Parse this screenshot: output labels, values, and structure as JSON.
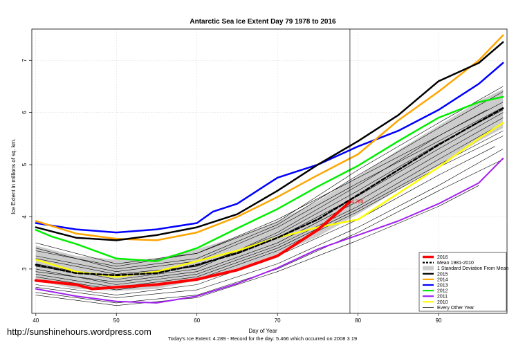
{
  "watermark": "http://sunshinehours.wordpress.com",
  "footer": "Today's Ice Extent: 4.289  - Record for the day: 5.466 which occurred on 2008 3 19",
  "chart_data": {
    "type": "line",
    "title": "Antarctic Sea Ice Extent Day 79 1978 to 2016",
    "xlabel": "Day of Year",
    "ylabel": "Ice Extent in millions of sq. km.",
    "xlim": [
      39.5,
      98.5
    ],
    "ylim": [
      2.15,
      7.6
    ],
    "xticks": [
      40,
      50,
      60,
      70,
      80,
      90
    ],
    "yticks": [
      3,
      4,
      5,
      6,
      7
    ],
    "grid": true,
    "vline_x": 79,
    "annotation": {
      "text": "4.289",
      "x": 79,
      "y": 4.289
    },
    "legend_position": "bottom-right",
    "legend": [
      {
        "label": "2016",
        "color": "#ff0000",
        "style": "thick"
      },
      {
        "label": "Mean 1981-2010",
        "color": "#000000",
        "style": "dashed"
      },
      {
        "label": "1 Standard Deviation From Mean",
        "color": "#cccccc",
        "style": "box"
      },
      {
        "label": "2015",
        "color": "#000000",
        "style": "line"
      },
      {
        "label": "2014",
        "color": "#ffa500",
        "style": "line"
      },
      {
        "label": "2013",
        "color": "#0000ff",
        "style": "line"
      },
      {
        "label": "2012",
        "color": "#00ee00",
        "style": "line"
      },
      {
        "label": "2011",
        "color": "#a020f0",
        "style": "line"
      },
      {
        "label": "2010",
        "color": "#ffff00",
        "style": "line"
      },
      {
        "label": "Every Other Year",
        "color": "#000000",
        "style": "thin"
      }
    ],
    "band": {
      "name": "1 Standard Deviation From Mean",
      "x": [
        40,
        45,
        50,
        55,
        60,
        65,
        70,
        75,
        80,
        85,
        90,
        95,
        98
      ],
      "upper": [
        3.45,
        3.25,
        3.18,
        3.2,
        3.38,
        3.62,
        3.92,
        4.3,
        4.78,
        5.28,
        5.75,
        6.22,
        6.45
      ],
      "lower": [
        2.78,
        2.62,
        2.58,
        2.62,
        2.78,
        3.0,
        3.28,
        3.62,
        4.05,
        4.52,
        4.98,
        5.45,
        5.7
      ]
    },
    "series": [
      {
        "name": "Every Other Year",
        "color": "#000000",
        "width": 0.6,
        "x": [
          40,
          50,
          60,
          70,
          80,
          90,
          96
        ],
        "y": [
          3.35,
          3.05,
          3.3,
          3.95,
          4.75,
          5.55,
          6.05
        ]
      },
      {
        "name": "Every Other Year",
        "color": "#000000",
        "width": 0.6,
        "x": [
          40,
          50,
          60,
          70,
          80,
          90,
          98
        ],
        "y": [
          3.0,
          2.7,
          2.9,
          3.45,
          4.2,
          5.1,
          5.8
        ]
      },
      {
        "name": "Every Other Year",
        "color": "#000000",
        "width": 0.6,
        "x": [
          40,
          50,
          60,
          70,
          80,
          90,
          98
        ],
        "y": [
          2.65,
          2.45,
          2.6,
          3.1,
          3.8,
          4.6,
          5.3
        ]
      },
      {
        "name": "Every Other Year",
        "color": "#000000",
        "width": 0.6,
        "x": [
          40,
          50,
          60,
          70,
          80,
          90,
          98
        ],
        "y": [
          3.2,
          2.9,
          3.05,
          3.6,
          4.4,
          5.3,
          6.0
        ]
      },
      {
        "name": "Every Other Year",
        "color": "#000000",
        "width": 0.6,
        "x": [
          40,
          50,
          60,
          70,
          80,
          90,
          98
        ],
        "y": [
          2.85,
          2.6,
          2.8,
          3.35,
          4.1,
          4.95,
          5.55
        ]
      },
      {
        "name": "Every Other Year",
        "color": "#000000",
        "width": 0.6,
        "x": [
          40,
          50,
          60,
          70,
          80,
          90,
          98
        ],
        "y": [
          3.1,
          2.8,
          3.0,
          3.7,
          4.6,
          5.55,
          6.2
        ]
      },
      {
        "name": "Every Other Year",
        "color": "#000000",
        "width": 0.6,
        "x": [
          40,
          50,
          60,
          70,
          80,
          90,
          98
        ],
        "y": [
          2.55,
          2.35,
          2.5,
          3.0,
          3.7,
          4.5,
          5.1
        ]
      },
      {
        "name": "Every Other Year",
        "color": "#000000",
        "width": 0.6,
        "x": [
          40,
          50,
          60,
          70,
          80,
          90,
          98
        ],
        "y": [
          3.5,
          3.1,
          3.3,
          3.9,
          4.9,
          5.8,
          6.5
        ]
      },
      {
        "name": "Every Other Year",
        "color": "#000000",
        "width": 0.6,
        "x": [
          40,
          50,
          60,
          70,
          80,
          90,
          98
        ],
        "y": [
          2.95,
          2.75,
          2.95,
          3.5,
          4.3,
          5.2,
          5.9
        ]
      },
      {
        "name": "Every Other Year",
        "color": "#000000",
        "width": 0.6,
        "x": [
          40,
          50,
          60,
          70,
          80,
          90,
          97
        ],
        "y": [
          2.7,
          2.5,
          2.7,
          3.25,
          3.95,
          4.8,
          5.35
        ]
      },
      {
        "name": "Every Other Year",
        "color": "#000000",
        "width": 0.6,
        "x": [
          40,
          50,
          60,
          70,
          80,
          90,
          98
        ],
        "y": [
          3.25,
          2.95,
          3.15,
          3.8,
          4.65,
          5.45,
          6.1
        ]
      },
      {
        "name": "Every Other Year",
        "color": "#000000",
        "width": 0.6,
        "x": [
          40,
          50,
          60,
          70,
          80,
          90,
          95
        ],
        "y": [
          2.5,
          2.3,
          2.45,
          2.95,
          3.55,
          4.2,
          4.6
        ]
      },
      {
        "name": "Every Other Year",
        "color": "#000000",
        "width": 0.6,
        "x": [
          40,
          50,
          60,
          70,
          80,
          90,
          98
        ],
        "y": [
          3.05,
          2.85,
          3.05,
          3.65,
          4.5,
          5.4,
          6.05
        ]
      },
      {
        "name": "Every Other Year",
        "color": "#000000",
        "width": 0.6,
        "x": [
          40,
          50,
          60,
          70,
          80,
          90,
          98
        ],
        "y": [
          2.9,
          2.65,
          2.85,
          3.4,
          4.15,
          5.0,
          5.65
        ]
      },
      {
        "name": "Every Other Year",
        "color": "#000000",
        "width": 0.6,
        "x": [
          40,
          50,
          60,
          70,
          80,
          90,
          98
        ],
        "y": [
          3.4,
          3.0,
          3.2,
          3.85,
          4.8,
          5.7,
          6.4
        ]
      },
      {
        "name": "2010",
        "color": "#ffff00",
        "width": 2.5,
        "x": [
          40,
          45,
          50,
          55,
          60,
          65,
          70,
          75,
          80,
          85,
          90,
          95,
          98
        ],
        "y": [
          3.18,
          2.95,
          2.85,
          2.95,
          3.15,
          3.35,
          3.6,
          3.8,
          3.95,
          4.45,
          4.95,
          5.5,
          5.8
        ]
      },
      {
        "name": "2011",
        "color": "#a020f0",
        "width": 2.0,
        "x": [
          40,
          45,
          50,
          55,
          60,
          65,
          70,
          75,
          80,
          85,
          90,
          95,
          98
        ],
        "y": [
          2.62,
          2.48,
          2.38,
          2.35,
          2.48,
          2.72,
          3.02,
          3.38,
          3.65,
          3.92,
          4.25,
          4.65,
          5.12
        ]
      },
      {
        "name": "2012",
        "color": "#00ee00",
        "width": 2.5,
        "x": [
          40,
          42,
          45,
          50,
          55,
          60,
          65,
          70,
          75,
          80,
          85,
          90,
          95,
          98
        ],
        "y": [
          3.75,
          3.62,
          3.48,
          3.2,
          3.15,
          3.4,
          3.78,
          4.15,
          4.58,
          4.98,
          5.45,
          5.9,
          6.2,
          6.3
        ]
      },
      {
        "name": "2013",
        "color": "#0000ff",
        "width": 2.5,
        "x": [
          40,
          45,
          50,
          55,
          60,
          62,
          65,
          70,
          75,
          80,
          85,
          90,
          95,
          98
        ],
        "y": [
          3.88,
          3.76,
          3.7,
          3.76,
          3.88,
          4.1,
          4.25,
          4.75,
          5.0,
          5.35,
          5.65,
          6.05,
          6.55,
          6.95
        ]
      },
      {
        "name": "2014",
        "color": "#ffa500",
        "width": 2.5,
        "x": [
          40,
          45,
          50,
          55,
          60,
          65,
          70,
          75,
          80,
          85,
          90,
          95,
          98
        ],
        "y": [
          3.92,
          3.68,
          3.58,
          3.55,
          3.7,
          4.0,
          4.38,
          4.8,
          5.2,
          5.85,
          6.4,
          7.0,
          7.48
        ]
      },
      {
        "name": "2015",
        "color": "#000000",
        "width": 2.5,
        "x": [
          40,
          45,
          50,
          55,
          60,
          65,
          70,
          75,
          80,
          85,
          90,
          95,
          98
        ],
        "y": [
          3.8,
          3.6,
          3.55,
          3.65,
          3.8,
          4.05,
          4.5,
          5.0,
          5.45,
          5.95,
          6.6,
          6.95,
          7.35
        ]
      },
      {
        "name": "Mean 1981-2010",
        "color": "#000000",
        "width": 2.5,
        "dash": "6,3",
        "x": [
          40,
          45,
          50,
          55,
          60,
          65,
          70,
          75,
          80,
          85,
          90,
          95,
          98
        ],
        "y": [
          3.08,
          2.92,
          2.88,
          2.92,
          3.08,
          3.3,
          3.6,
          3.95,
          4.42,
          4.9,
          5.38,
          5.82,
          6.08
        ]
      },
      {
        "name": "2016",
        "color": "#ff0000",
        "width": 4.0,
        "x": [
          40,
          45,
          47,
          50,
          55,
          60,
          65,
          70,
          72,
          75,
          78,
          79
        ],
        "y": [
          2.78,
          2.7,
          2.62,
          2.65,
          2.7,
          2.8,
          2.98,
          3.25,
          3.45,
          3.75,
          4.15,
          4.289
        ]
      }
    ]
  }
}
